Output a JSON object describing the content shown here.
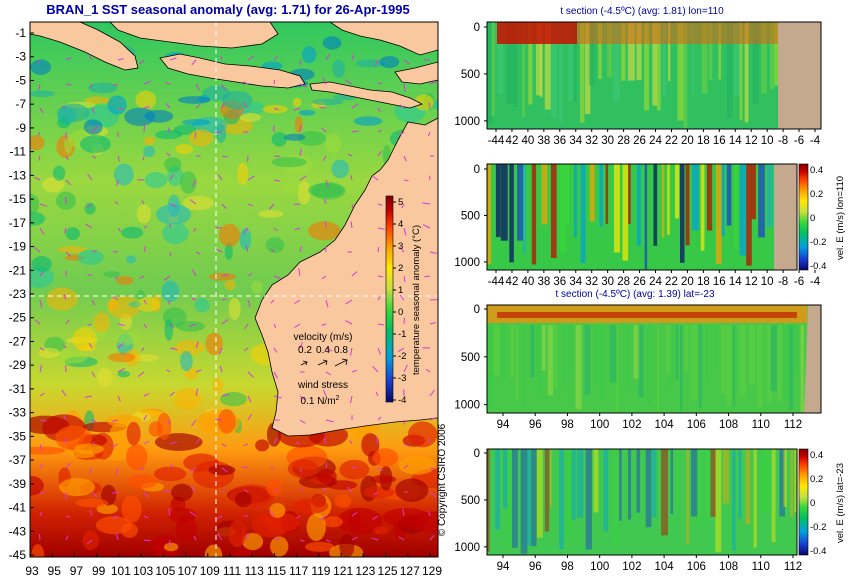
{
  "colors": {
    "land": "#f9c89e",
    "bottom": "#c5a98e",
    "axis": "#000000",
    "title": "#0000aa",
    "vector": "#d83ad8",
    "colormap": [
      "#08086a",
      "#1a3cd0",
      "#00a0e0",
      "#00c060",
      "#38d838",
      "#c8e040",
      "#ffe800",
      "#ffa000",
      "#ff4000",
      "#c80000",
      "#800000"
    ]
  },
  "main_map": {
    "title": "BRAN_1 SST seasonal anomaly (avg: 1.71) for 26-Apr-1995",
    "lon_ticks": [
      "93",
      "95",
      "97",
      "99",
      "101",
      "103",
      "105",
      "107",
      "109",
      "111",
      "113",
      "115",
      "117",
      "119",
      "121",
      "123",
      "125",
      "127",
      "129"
    ],
    "lat_ticks": [
      "-1",
      "-3",
      "-5",
      "-7",
      "-9",
      "-11",
      "-13",
      "-15",
      "-17",
      "-19",
      "-21",
      "-23",
      "-25",
      "-27",
      "-29",
      "-31",
      "-33",
      "-35",
      "-37",
      "-39",
      "-41",
      "-43",
      "-45"
    ],
    "colorbar_label": "temperature seasonal anomaly (°C)",
    "colorbar_ticks": [
      "5",
      "4",
      "3",
      "2",
      "1",
      "0",
      "-1",
      "-2",
      "-3",
      "-4"
    ],
    "velocity_label": "velocity (m/s)",
    "velocity_scale": [
      "0.2",
      "0.4",
      "0.8"
    ],
    "wind_label": "wind stress",
    "wind_value": "0.1 N/m",
    "wind_sup": "2",
    "copyright": "© Copyright CSIRO 2006"
  },
  "panels": {
    "p1": {
      "title": "t section (-4.5ºC) (avg: 1.81) lon=110",
      "x_ticks": [
        "-44",
        "42",
        "40",
        "38",
        "36",
        "34",
        "32",
        "30",
        "28",
        "26",
        "24",
        "22",
        "20",
        "18",
        "16",
        "14",
        "12",
        "10",
        "-8",
        "-6",
        "-4"
      ],
      "y_ticks": [
        "0",
        "500",
        "1000"
      ]
    },
    "p2": {
      "x_ticks": [
        "-44",
        "42",
        "40",
        "38",
        "36",
        "34",
        "32",
        "30",
        "28",
        "26",
        "24",
        "22",
        "20",
        "18",
        "16",
        "14",
        "12",
        "10",
        "-8",
        "-6",
        "-4"
      ],
      "y_ticks": [
        "0",
        "500",
        "1000"
      ],
      "colorbar_label": "vel. E (m/s) lon=110",
      "colorbar_ticks": [
        "0.4",
        "0.2",
        "0",
        "-0.2",
        "-0.4"
      ]
    },
    "p3": {
      "title": "t section (-4.5ºC) (avg: 1.39) lat=-23",
      "x_ticks": [
        "94",
        "96",
        "98",
        "100",
        "102",
        "104",
        "106",
        "108",
        "110",
        "112"
      ],
      "y_ticks": [
        "0",
        "500",
        "1000"
      ]
    },
    "p4": {
      "x_ticks": [
        "94",
        "96",
        "98",
        "100",
        "102",
        "104",
        "106",
        "108",
        "110",
        "112"
      ],
      "y_ticks": [
        "0",
        "500",
        "1000"
      ],
      "colorbar_label": "vel. E (m/s) lat=-23",
      "colorbar_ticks": [
        "0.4",
        "0.2",
        "0",
        "-0.2",
        "-0.4"
      ]
    }
  },
  "chart_data": [
    {
      "type": "heatmap",
      "title": "BRAN_1 SST seasonal anomaly (avg: 1.71) for 26-Apr-1995",
      "xlim": [
        93,
        129
      ],
      "ylim": [
        -45,
        -1
      ],
      "zlim": [
        -4,
        5
      ],
      "average": 1.71
    },
    {
      "type": "heatmap",
      "title": "t section (-4.5ºC) (avg: 1.81) lon=110",
      "ylim": [
        0,
        1050
      ],
      "average": 1.81
    },
    {
      "type": "heatmap",
      "ylim": [
        0,
        1050
      ],
      "zlim": [
        -0.4,
        0.4
      ]
    },
    {
      "type": "heatmap",
      "title": "t section (-4.5ºC) (avg: 1.39) lat=-23",
      "xlim": [
        93,
        114
      ],
      "ylim": [
        0,
        1050
      ],
      "average": 1.39
    },
    {
      "type": "heatmap",
      "xlim": [
        93,
        114
      ],
      "ylim": [
        0,
        1050
      ],
      "zlim": [
        -0.4,
        0.4
      ]
    }
  ]
}
